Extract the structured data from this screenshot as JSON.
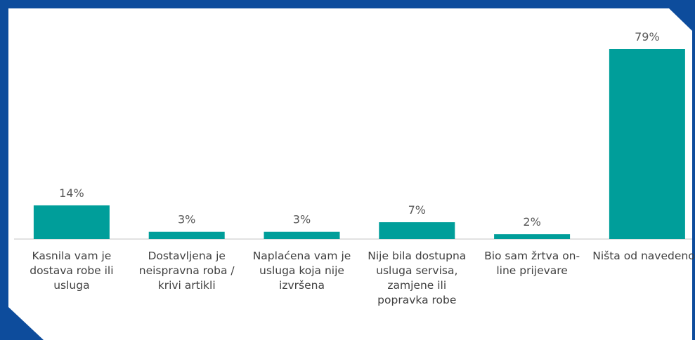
{
  "chart_data": {
    "type": "bar",
    "categories": [
      "Kasnila vam je dostava robe ili usluga",
      "Dostavljena  je neispravna roba / krivi artikli",
      "Naplaćena vam je usluga koja nije izvršena",
      "Nije bila dostupna usluga servisa, zamjene ili popravka robe",
      "Bio sam žrtva on-line prijevare",
      "Ništa od navedenog"
    ],
    "values": [
      14,
      3,
      3,
      7,
      2,
      79
    ],
    "value_labels": [
      "14%",
      "3%",
      "3%",
      "7%",
      "2%",
      "79%"
    ],
    "color": "#009e9a"
  }
}
